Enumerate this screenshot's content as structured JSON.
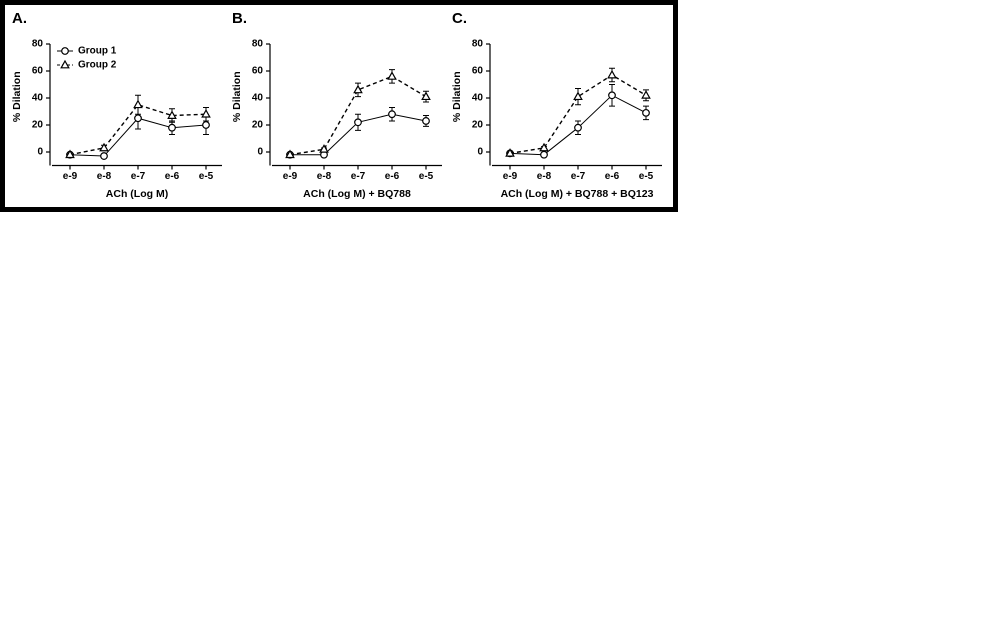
{
  "chart_data": [
    {
      "type": "line",
      "title": "A.",
      "xlabel": "ACh (Log M)",
      "ylabel": "% Dilation",
      "categories": [
        "e-9",
        "e-8",
        "e-7",
        "e-6",
        "e-5"
      ],
      "ylim": [
        -10,
        80
      ],
      "yticks": [
        0,
        20,
        40,
        60,
        80
      ],
      "legend": "upper left",
      "series": [
        {
          "name": "Group 1",
          "color": "#000000",
          "marker": "circle",
          "dashed": false,
          "values": [
            -2,
            -3,
            25,
            18,
            20
          ],
          "errors": [
            0.5,
            1,
            8,
            5,
            7
          ]
        },
        {
          "name": "Group 2",
          "color": "#000000",
          "marker": "triangle",
          "dashed": true,
          "values": [
            -2,
            3,
            35,
            27,
            28
          ],
          "errors": [
            0.5,
            2,
            7,
            5,
            5
          ]
        }
      ]
    },
    {
      "type": "line",
      "title": "B.",
      "xlabel": "ACh (Log M) + BQ788",
      "ylabel": "% Dilation",
      "categories": [
        "e-9",
        "e-8",
        "e-7",
        "e-6",
        "e-5"
      ],
      "ylim": [
        -10,
        80
      ],
      "yticks": [
        0,
        20,
        40,
        60,
        80
      ],
      "series": [
        {
          "color": "#000000",
          "marker": "circle",
          "dashed": false,
          "values": [
            -2,
            -2,
            22,
            28,
            23
          ],
          "errors": [
            0.5,
            0.5,
            6,
            5,
            4
          ]
        },
        {
          "color": "#000000",
          "marker": "triangle",
          "dashed": true,
          "values": [
            -2,
            2,
            46,
            56,
            41
          ],
          "errors": [
            0.5,
            1,
            5,
            5,
            4
          ]
        }
      ]
    },
    {
      "type": "line",
      "title": "C.",
      "xlabel": "ACh (Log M) + BQ788 + BQ123",
      "ylabel": "% Dilation",
      "categories": [
        "e-9",
        "e-8",
        "e-7",
        "e-6",
        "e-5"
      ],
      "ylim": [
        -10,
        80
      ],
      "yticks": [
        0,
        20,
        40,
        60,
        80
      ],
      "series": [
        {
          "color": "#000000",
          "marker": "circle",
          "dashed": false,
          "values": [
            -1,
            -2,
            18,
            42,
            29
          ],
          "errors": [
            0.5,
            0.5,
            5,
            8,
            5
          ]
        },
        {
          "color": "#000000",
          "marker": "triangle",
          "dashed": true,
          "values": [
            -1,
            3,
            41,
            57,
            42
          ],
          "errors": [
            0.5,
            1,
            6,
            5,
            4
          ]
        }
      ]
    }
  ]
}
